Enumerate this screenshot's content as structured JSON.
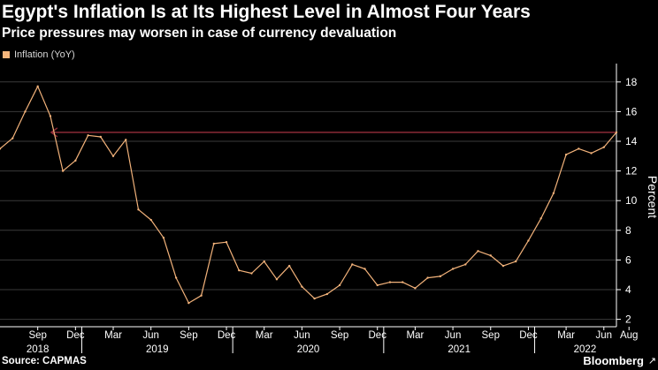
{
  "title": "Egypt's Inflation Is at Its Highest Level in Almost Four Years",
  "subtitle": "Price pressures may worsen in case of currency devaluation",
  "source": "Source: CAPMAS",
  "brand": "Bloomberg",
  "brand_icon": "arrow-icon",
  "colors": {
    "line": "#f2b27a",
    "reference": "#8a2a36",
    "grid": "#3a3a3a",
    "legend": "#f5b67c"
  },
  "chart_data": {
    "type": "line",
    "title": "Egypt's Inflation Is at Its Highest Level in Almost Four Years",
    "ylabel": "Percent",
    "xlabel": "",
    "ylim": [
      1.5,
      19
    ],
    "yticks": [
      2,
      4,
      6,
      8,
      10,
      12,
      14,
      16,
      18
    ],
    "legend": "Inflation (YoY)",
    "legend_position": "top-left",
    "series": [
      {
        "name": "Inflation (YoY)",
        "values": [
          13.5,
          14.2,
          16.0,
          17.7,
          15.7,
          12.0,
          12.7,
          14.4,
          14.3,
          13.0,
          14.1,
          9.4,
          8.7,
          7.5,
          4.8,
          3.1,
          3.6,
          7.1,
          7.2,
          5.3,
          5.1,
          5.9,
          4.7,
          5.6,
          4.2,
          3.4,
          3.7,
          4.3,
          5.7,
          5.4,
          4.3,
          4.5,
          4.5,
          4.1,
          4.8,
          4.9,
          5.4,
          5.7,
          6.6,
          6.3,
          5.6,
          5.9,
          7.3,
          8.8,
          10.5,
          13.1,
          13.5,
          13.2,
          13.6,
          14.6
        ]
      }
    ],
    "reference_line": {
      "value": 14.6,
      "from_index": 4,
      "to_index": 49,
      "label": ""
    },
    "month_ticks": [
      {
        "index": 3,
        "label": "Sep"
      },
      {
        "index": 6,
        "label": "Dec"
      },
      {
        "index": 9,
        "label": "Mar"
      },
      {
        "index": 12,
        "label": "Jun"
      },
      {
        "index": 15,
        "label": "Sep"
      },
      {
        "index": 18,
        "label": "Dec"
      },
      {
        "index": 21,
        "label": "Mar"
      },
      {
        "index": 24,
        "label": "Jun"
      },
      {
        "index": 27,
        "label": "Sep"
      },
      {
        "index": 30,
        "label": "Dec"
      },
      {
        "index": 33,
        "label": "Mar"
      },
      {
        "index": 36,
        "label": "Jun"
      },
      {
        "index": 39,
        "label": "Sep"
      },
      {
        "index": 42,
        "label": "Dec"
      },
      {
        "index": 45,
        "label": "Mar"
      },
      {
        "index": 48,
        "label": "Jun"
      },
      {
        "index": 50,
        "label": "Aug"
      }
    ],
    "year_labels": [
      {
        "label": "2018",
        "start": 0,
        "end": 7
      },
      {
        "label": "2019",
        "start": 7,
        "end": 19
      },
      {
        "label": "2020",
        "start": 19,
        "end": 31
      },
      {
        "label": "2021",
        "start": 31,
        "end": 43
      },
      {
        "label": "2022",
        "start": 43,
        "end": 51
      }
    ],
    "year_boundaries": [
      7,
      19,
      31,
      43
    ]
  }
}
